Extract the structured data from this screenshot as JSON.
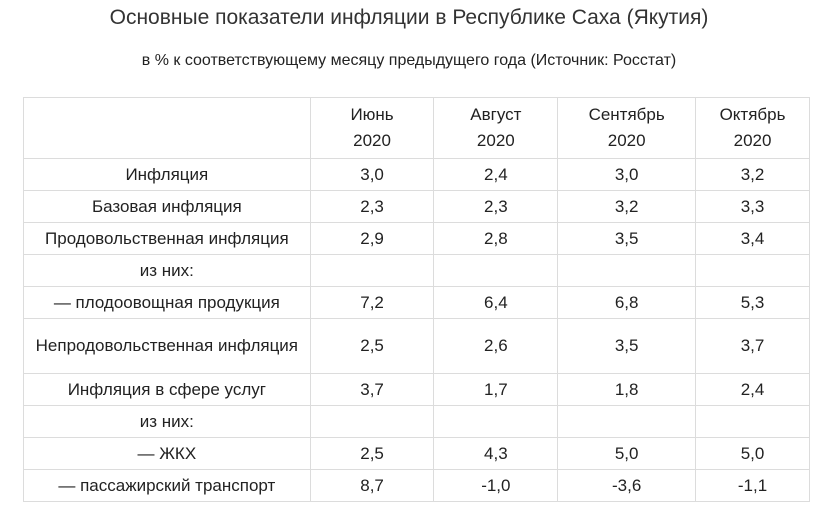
{
  "title": "Основные показатели инфляции в Республике Саха (Якутия)",
  "subtitle": "в % к соответствующему месяцу предыдущего года (Источник: Росстат)",
  "table": {
    "header": {
      "corner": "",
      "months": [
        {
          "month": "Июнь",
          "year": "2020"
        },
        {
          "month": "Август",
          "year": "2020"
        },
        {
          "month": "Сентябрь",
          "year": "2020"
        },
        {
          "month": "Октябрь",
          "year": "2020"
        }
      ]
    },
    "rows": [
      {
        "label": "Инфляция",
        "values": [
          "3,0",
          "2,4",
          "3,0",
          "3,2"
        ]
      },
      {
        "label": "Базовая инфляция",
        "values": [
          "2,3",
          "2,3",
          "3,2",
          "3,3"
        ]
      },
      {
        "label": "Продовольственная инфляция",
        "values": [
          "2,9",
          "2,8",
          "3,5",
          "3,4"
        ]
      },
      {
        "label": "из них:",
        "values": [
          "",
          "",
          "",
          ""
        ]
      },
      {
        "label": "— плодоовощная продукция",
        "values": [
          "7,2",
          "6,4",
          "6,8",
          "5,3"
        ]
      },
      {
        "label": "Непродовольственная инфляция",
        "values": [
          "2,5",
          "2,6",
          "3,5",
          "3,7"
        ]
      },
      {
        "label": "Инфляция в сфере услуг",
        "values": [
          "3,7",
          "1,7",
          "1,8",
          "2,4"
        ]
      },
      {
        "label": "из них:",
        "values": [
          "",
          "",
          "",
          ""
        ]
      },
      {
        "label": "— ЖКХ",
        "values": [
          "2,5",
          "4,3",
          "5,0",
          "5,0"
        ]
      },
      {
        "label": "— пассажирский транспорт",
        "values": [
          "8,7",
          "-1,0",
          "-3,6",
          "-1,1"
        ]
      }
    ]
  }
}
